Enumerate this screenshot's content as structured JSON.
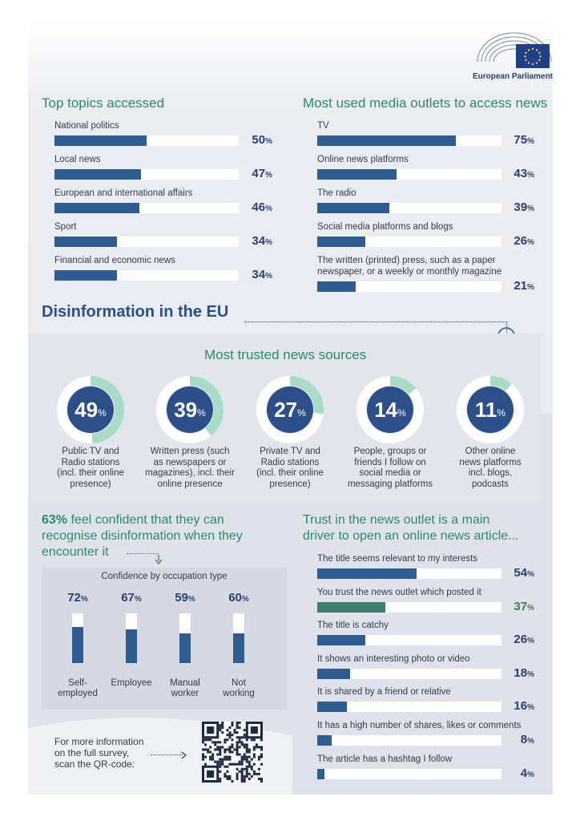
{
  "org": {
    "name": "European Parliament"
  },
  "colors": {
    "accent_green": "#2d8a6a",
    "bar_blue": "#2f5d92",
    "bar_green": "#3f7e6a",
    "title_blue": "#2c4f8a",
    "ring_green": "#a8dcc6"
  },
  "top_topics": {
    "title": "Top topics accessed",
    "items": [
      {
        "label": "National politics",
        "value": 50,
        "pct_text": "50"
      },
      {
        "label": "Local news",
        "value": 47,
        "pct_text": "47"
      },
      {
        "label": "European and international affairs",
        "value": 46,
        "pct_text": "46"
      },
      {
        "label": "Sport",
        "value": 34,
        "pct_text": "34"
      },
      {
        "label": "Financial and economic news",
        "value": 34,
        "pct_text": "34"
      }
    ]
  },
  "media_outlets": {
    "title": "Most used media outlets to access news",
    "items": [
      {
        "label": "TV",
        "value": 75,
        "pct_text": "75"
      },
      {
        "label": "Online news platforms",
        "value": 43,
        "pct_text": "43"
      },
      {
        "label": "The radio",
        "value": 39,
        "pct_text": "39"
      },
      {
        "label": "Social media platforms and blogs",
        "value": 26,
        "pct_text": "26"
      },
      {
        "label": "The written (printed) press, such as a paper newspaper, or a weekly or monthly magazine",
        "label_lines": [
          "The written (printed) press, such as a paper",
          "newspaper, or a weekly or monthly magazine"
        ],
        "value": 21,
        "pct_text": "21"
      }
    ]
  },
  "section_title": "Disinformation in the EU",
  "trusted_sources": {
    "title": "Most trusted news sources",
    "items": [
      {
        "value": 49,
        "num": "49",
        "label_lines": [
          "Public TV and",
          "Radio stations",
          "(incl. their online",
          "presence)"
        ]
      },
      {
        "value": 39,
        "num": "39",
        "label_lines": [
          "Written press (such",
          "as newspapers or",
          "magazines), incl. their",
          "online presence"
        ]
      },
      {
        "value": 27,
        "num": "27",
        "label_lines": [
          "Private TV and",
          "Radio stations",
          "(incl. their online",
          "presence)"
        ]
      },
      {
        "value": 14,
        "num": "14",
        "label_lines": [
          "People, groups or",
          "friends I follow on",
          "social media or",
          "messaging platforms"
        ]
      },
      {
        "value": 11,
        "num": "11",
        "label_lines": [
          "Other online",
          "news platforms",
          "incl. blogs,",
          "podcasts"
        ]
      }
    ]
  },
  "confidence": {
    "headline_bold": "63%",
    "headline_lines": [
      " feel confident that they can",
      "recognise disinformation when they",
      "encounter it"
    ],
    "subtitle": "Confidence by occupation type",
    "items": [
      {
        "label_lines": [
          "Self-",
          "employed"
        ],
        "value": 72,
        "pct_text": "72"
      },
      {
        "label_lines": [
          "Employee"
        ],
        "value": 67,
        "pct_text": "67"
      },
      {
        "label_lines": [
          "Manual",
          "worker"
        ],
        "value": 59,
        "pct_text": "59"
      },
      {
        "label_lines": [
          "Not",
          "working"
        ],
        "value": 60,
        "pct_text": "60"
      }
    ]
  },
  "open_article": {
    "title_lines": [
      "Trust in the news outlet is a main",
      "driver to open an online news article..."
    ],
    "items": [
      {
        "label": "The title seems relevant to my interests",
        "value": 54,
        "pct_text": "54",
        "highlight": false
      },
      {
        "label": "You trust the news outlet which posted it",
        "value": 37,
        "pct_text": "37",
        "highlight": true
      },
      {
        "label": "The title is catchy",
        "value": 26,
        "pct_text": "26",
        "highlight": false
      },
      {
        "label": "It shows an interesting photo or video",
        "value": 18,
        "pct_text": "18",
        "highlight": false
      },
      {
        "label": "It is shared by a friend or relative",
        "value": 16,
        "pct_text": "16",
        "highlight": false
      },
      {
        "label": "It has a high number of shares, likes or comments",
        "value": 8,
        "pct_text": "8",
        "highlight": false
      },
      {
        "label": "The article has a hashtag I follow",
        "value": 4,
        "pct_text": "4",
        "highlight": false
      }
    ]
  },
  "footer": {
    "lines": [
      "For more information",
      "on the full survey,",
      "scan the QR-code:"
    ]
  },
  "chart_data": [
    {
      "type": "bar",
      "title": "Top topics accessed",
      "categories": [
        "National politics",
        "Local news",
        "European and international affairs",
        "Sport",
        "Financial and economic news"
      ],
      "values": [
        50,
        47,
        46,
        34,
        34
      ],
      "ylim": [
        0,
        100
      ]
    },
    {
      "type": "bar",
      "title": "Most used media outlets to access news",
      "categories": [
        "TV",
        "Online news platforms",
        "The radio",
        "Social media platforms and blogs",
        "The written (printed) press, such as a paper newspaper, or a weekly or monthly magazine"
      ],
      "values": [
        75,
        43,
        39,
        26,
        21
      ],
      "ylim": [
        0,
        100
      ]
    },
    {
      "type": "pie",
      "title": "Most trusted news sources",
      "categories": [
        "Public TV and Radio stations (incl. their online presence)",
        "Written press (such as newspapers or magazines), incl. their online presence",
        "Private TV and Radio stations (incl. their online presence)",
        "People, groups or friends I follow on social media or messaging platforms",
        "Other online news platforms incl. blogs, podcasts"
      ],
      "values": [
        49,
        39,
        27,
        14,
        11
      ]
    },
    {
      "type": "bar",
      "title": "Confidence by occupation type",
      "categories": [
        "Self-employed",
        "Employee",
        "Manual worker",
        "Not working"
      ],
      "values": [
        72,
        67,
        59,
        60
      ],
      "ylim": [
        0,
        100
      ]
    },
    {
      "type": "bar",
      "title": "Trust in the news outlet is a main driver to open an online news article...",
      "categories": [
        "The title seems relevant to my interests",
        "You trust the news outlet which posted it",
        "The title is catchy",
        "It shows an interesting photo or video",
        "It is shared by a friend or relative",
        "It has a high number of shares, likes or comments",
        "The article has a hashtag I follow"
      ],
      "values": [
        54,
        37,
        26,
        18,
        16,
        8,
        4
      ],
      "ylim": [
        0,
        100
      ]
    }
  ]
}
